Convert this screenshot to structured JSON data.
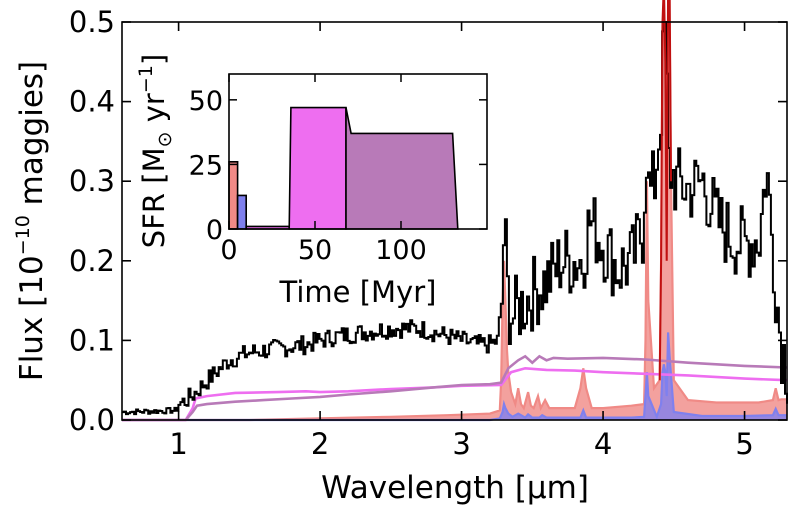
{
  "chart_data": [
    {
      "type": "line",
      "name": "main-spectrum",
      "xlabel": "Wavelength [μm]",
      "ylabel_prefix": "Flux [10",
      "ylabel_exp": "−10",
      "ylabel_suffix": " maggies]",
      "xlim": [
        0.6,
        5.3
      ],
      "ylim": [
        0,
        0.5
      ],
      "xticks": [
        {
          "value": 1,
          "label": "1"
        },
        {
          "value": 2,
          "label": "2"
        },
        {
          "value": 3,
          "label": "3"
        },
        {
          "value": 4,
          "label": "4"
        },
        {
          "value": 5,
          "label": "5"
        }
      ],
      "yticks": [
        {
          "value": 0.0,
          "label": "0.0"
        },
        {
          "value": 0.1,
          "label": "0.1"
        },
        {
          "value": 0.2,
          "label": "0.2"
        },
        {
          "value": 0.3,
          "label": "0.3"
        },
        {
          "value": 0.4,
          "label": "0.4"
        },
        {
          "value": 0.5,
          "label": "0.5"
        }
      ],
      "series": [
        {
          "name": "observed",
          "color": "#000000",
          "step": true,
          "noise": 0.012,
          "seed": 7,
          "x": [
            0.6,
            0.98,
            1.0,
            1.05,
            1.1,
            1.2,
            1.35,
            1.5,
            1.7,
            1.9,
            2.1,
            2.3,
            2.5,
            2.7,
            2.9,
            3.1,
            3.2,
            3.25,
            3.28,
            3.3,
            3.31,
            3.33,
            3.36,
            3.4,
            3.5,
            3.6,
            3.7,
            3.85,
            3.9,
            4.0,
            4.1,
            4.2,
            4.28,
            4.3,
            4.32,
            4.36,
            4.4,
            4.43,
            4.46,
            4.5,
            4.6,
            4.7,
            4.8,
            4.9,
            5.0,
            5.1,
            5.15,
            5.2,
            5.25,
            5.3
          ],
          "y": [
            0.01,
            0.012,
            0.02,
            0.025,
            0.032,
            0.05,
            0.075,
            0.085,
            0.09,
            0.095,
            0.105,
            0.11,
            0.115,
            0.115,
            0.105,
            0.095,
            0.095,
            0.1,
            0.15,
            0.27,
            0.18,
            0.14,
            0.13,
            0.14,
            0.16,
            0.175,
            0.2,
            0.2,
            0.25,
            0.22,
            0.19,
            0.2,
            0.24,
            0.35,
            0.28,
            0.3,
            0.38,
            0.5,
            0.32,
            0.3,
            0.29,
            0.3,
            0.25,
            0.23,
            0.22,
            0.23,
            0.32,
            0.2,
            0.1,
            0.06
          ]
        },
        {
          "name": "component-red",
          "color": "#f08a86",
          "fill": true,
          "x": [
            0.6,
            1.1,
            1.5,
            2.0,
            2.5,
            2.9,
            3.2,
            3.27,
            3.28,
            3.29,
            3.3,
            3.31,
            3.32,
            3.33,
            3.35,
            3.38,
            3.4,
            3.42,
            3.44,
            3.47,
            3.49,
            3.51,
            3.54,
            3.56,
            3.59,
            3.62,
            3.65,
            3.8,
            3.84,
            3.86,
            3.88,
            3.92,
            4.0,
            4.2,
            4.29,
            4.3,
            4.31,
            4.32,
            4.36,
            4.4,
            4.41,
            4.42,
            4.43,
            4.44,
            4.45,
            4.46,
            4.47,
            4.48,
            4.5,
            4.6,
            4.8,
            5.0,
            5.1,
            5.2,
            5.22,
            5.24,
            5.26,
            5.3
          ],
          "y": [
            0.0,
            0.0,
            0.0,
            0.002,
            0.004,
            0.006,
            0.008,
            0.012,
            0.05,
            0.15,
            0.2,
            0.15,
            0.09,
            0.06,
            0.035,
            0.02,
            0.04,
            0.02,
            0.015,
            0.035,
            0.018,
            0.015,
            0.03,
            0.015,
            0.025,
            0.015,
            0.015,
            0.015,
            0.04,
            0.065,
            0.04,
            0.015,
            0.015,
            0.018,
            0.02,
            0.1,
            0.3,
            0.15,
            0.04,
            0.05,
            0.2,
            0.5,
            0.55,
            0.45,
            0.2,
            0.55,
            0.6,
            0.3,
            0.05,
            0.025,
            0.022,
            0.022,
            0.022,
            0.025,
            0.04,
            0.025,
            0.026,
            0.026
          ]
        },
        {
          "name": "component-blue",
          "color": "#7f80ee",
          "fill": true,
          "x": [
            0.6,
            2.0,
            3.2,
            3.27,
            3.29,
            3.3,
            3.31,
            3.33,
            3.36,
            3.4,
            3.45,
            3.47,
            3.5,
            3.55,
            3.57,
            3.6,
            3.84,
            3.86,
            3.88,
            4.2,
            4.29,
            4.3,
            4.31,
            4.32,
            4.38,
            4.41,
            4.42,
            4.43,
            4.44,
            4.45,
            4.46,
            4.47,
            4.5,
            4.7,
            5.0,
            5.2,
            5.22,
            5.24,
            5.26,
            5.3
          ],
          "y": [
            0.0,
            0.0,
            0.0,
            0.002,
            0.01,
            0.02,
            0.015,
            0.008,
            0.004,
            0.008,
            0.003,
            0.007,
            0.003,
            0.003,
            0.006,
            0.003,
            0.003,
            0.012,
            0.003,
            0.003,
            0.004,
            0.03,
            0.06,
            0.03,
            0.004,
            0.02,
            0.06,
            0.07,
            0.06,
            0.03,
            0.11,
            0.08,
            0.01,
            0.005,
            0.005,
            0.006,
            0.014,
            0.006,
            0.006,
            0.006
          ]
        },
        {
          "name": "component-magenta",
          "color": "#ee6ef0",
          "fill": false,
          "x": [
            0.6,
            1.05,
            1.1,
            1.12,
            1.2,
            1.4,
            1.7,
            1.9,
            2.0,
            2.2,
            2.5,
            2.8,
            3.0,
            3.28,
            3.35,
            3.45,
            3.6,
            3.8,
            4.0,
            4.3,
            4.6,
            5.0,
            5.3
          ],
          "y": [
            0.0,
            0.0,
            0.015,
            0.027,
            0.03,
            0.034,
            0.035,
            0.036,
            0.035,
            0.036,
            0.039,
            0.041,
            0.043,
            0.044,
            0.06,
            0.065,
            0.063,
            0.062,
            0.06,
            0.058,
            0.056,
            0.052,
            0.05
          ]
        },
        {
          "name": "component-purple",
          "color": "#b87ab8",
          "fill": false,
          "x": [
            0.6,
            1.05,
            1.1,
            1.13,
            1.2,
            1.4,
            1.6,
            1.8,
            2.0,
            2.2,
            2.5,
            2.8,
            3.0,
            3.2,
            3.28,
            3.33,
            3.4,
            3.45,
            3.5,
            3.55,
            3.6,
            3.65,
            3.75,
            4.0,
            4.3,
            4.6,
            5.0,
            5.3
          ],
          "y": [
            0.0,
            0.0,
            0.01,
            0.018,
            0.02,
            0.023,
            0.025,
            0.027,
            0.029,
            0.032,
            0.036,
            0.041,
            0.044,
            0.045,
            0.047,
            0.065,
            0.075,
            0.08,
            0.072,
            0.08,
            0.075,
            0.078,
            0.077,
            0.078,
            0.076,
            0.072,
            0.068,
            0.066
          ]
        }
      ]
    },
    {
      "type": "area",
      "name": "inset-sfh",
      "xlabel": "Time [Myr]",
      "ylabel_prefix": "SFR [M",
      "ylabel_sub": "⊙",
      "ylabel_mid": " yr",
      "ylabel_exp": "−1",
      "ylabel_suffix": "]",
      "xlim": [
        0,
        150
      ],
      "ylim": [
        0,
        60
      ],
      "xticks": [
        {
          "value": 0,
          "label": "0"
        },
        {
          "value": 50,
          "label": "50"
        },
        {
          "value": 100,
          "label": "100"
        }
      ],
      "yticks": [
        {
          "value": 0,
          "label": "0"
        },
        {
          "value": 25,
          "label": "25"
        },
        {
          "value": 50,
          "label": "50"
        }
      ],
      "blocks": [
        {
          "name": "burst-red",
          "color": "#f08a86",
          "points": [
            [
              0,
              0
            ],
            [
              0,
              26
            ],
            [
              5,
              26
            ],
            [
              5,
              0
            ]
          ]
        },
        {
          "name": "burst-blue",
          "color": "#7f80ee",
          "points": [
            [
              5,
              0
            ],
            [
              5,
              13
            ],
            [
              10,
              13
            ],
            [
              10,
              0
            ]
          ]
        },
        {
          "name": "tail-low",
          "color": "#ee6ef0",
          "points": [
            [
              10,
              0
            ],
            [
              10,
              1
            ],
            [
              35,
              1
            ],
            [
              35,
              0
            ]
          ]
        },
        {
          "name": "burst-magenta",
          "color": "#ee6ef0",
          "points": [
            [
              35,
              0
            ],
            [
              36,
              47
            ],
            [
              68,
              47
            ],
            [
              68,
              0
            ]
          ]
        },
        {
          "name": "burst-purple",
          "color": "#b87ab8",
          "points": [
            [
              68,
              0
            ],
            [
              68,
              47
            ],
            [
              71,
              37
            ],
            [
              130,
              37
            ],
            [
              133,
              0
            ]
          ]
        }
      ]
    }
  ]
}
